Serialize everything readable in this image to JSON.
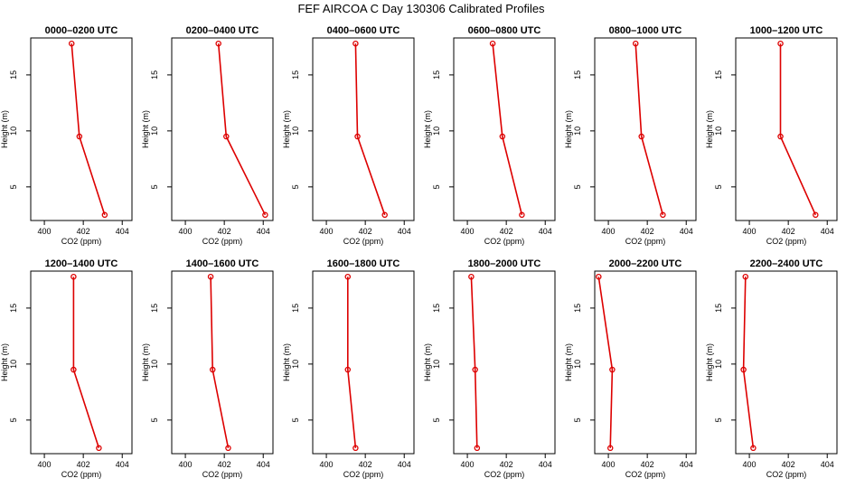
{
  "title": "FEF AIRCOA C  Day 130306  Calibrated Profiles",
  "colors": {
    "series": "#dd0000",
    "axis": "#000000",
    "background": "#ffffff"
  },
  "chart_data": [
    {
      "type": "line",
      "title": "0000–0200 UTC",
      "xlabel": "CO2 (ppm)",
      "ylabel": "Height (m)",
      "xlim": [
        399.3,
        404.5
      ],
      "ylim": [
        2,
        18.3
      ],
      "xticks": [
        400,
        402,
        404
      ],
      "yticks": [
        5,
        10,
        15
      ],
      "grid": false,
      "series": [
        {
          "x": [
            403.1,
            401.8,
            401.4
          ],
          "y": [
            2.5,
            9.5,
            17.8
          ]
        }
      ]
    },
    {
      "type": "line",
      "title": "0200–0400 UTC",
      "xlabel": "CO2 (ppm)",
      "ylabel": "Height (m)",
      "xlim": [
        399.3,
        404.5
      ],
      "ylim": [
        2,
        18.3
      ],
      "xticks": [
        400,
        402,
        404
      ],
      "yticks": [
        5,
        10,
        15
      ],
      "grid": false,
      "series": [
        {
          "x": [
            404.1,
            402.1,
            401.7
          ],
          "y": [
            2.5,
            9.5,
            17.8
          ]
        }
      ]
    },
    {
      "type": "line",
      "title": "0400–0600 UTC",
      "xlabel": "CO2 (ppm)",
      "ylabel": "Height (m)",
      "xlim": [
        399.3,
        404.5
      ],
      "ylim": [
        2,
        18.3
      ],
      "xticks": [
        400,
        402,
        404
      ],
      "yticks": [
        5,
        10,
        15
      ],
      "grid": false,
      "series": [
        {
          "x": [
            403.0,
            401.6,
            401.5
          ],
          "y": [
            2.5,
            9.5,
            17.8
          ]
        }
      ]
    },
    {
      "type": "line",
      "title": "0600–0800 UTC",
      "xlabel": "CO2 (ppm)",
      "ylabel": "Height (m)",
      "xlim": [
        399.3,
        404.5
      ],
      "ylim": [
        2,
        18.3
      ],
      "xticks": [
        400,
        402,
        404
      ],
      "yticks": [
        5,
        10,
        15
      ],
      "grid": false,
      "series": [
        {
          "x": [
            402.8,
            401.8,
            401.3
          ],
          "y": [
            2.5,
            9.5,
            17.8
          ]
        }
      ]
    },
    {
      "type": "line",
      "title": "0800–1000 UTC",
      "xlabel": "CO2 (ppm)",
      "ylabel": "Height (m)",
      "xlim": [
        399.3,
        404.5
      ],
      "ylim": [
        2,
        18.3
      ],
      "xticks": [
        400,
        402,
        404
      ],
      "yticks": [
        5,
        10,
        15
      ],
      "grid": false,
      "series": [
        {
          "x": [
            402.8,
            401.7,
            401.4
          ],
          "y": [
            2.5,
            9.5,
            17.8
          ]
        }
      ]
    },
    {
      "type": "line",
      "title": "1000–1200 UTC",
      "xlabel": "CO2 (ppm)",
      "ylabel": "Height (m)",
      "xlim": [
        399.3,
        404.5
      ],
      "ylim": [
        2,
        18.3
      ],
      "xticks": [
        400,
        402,
        404
      ],
      "yticks": [
        5,
        10,
        15
      ],
      "grid": false,
      "series": [
        {
          "x": [
            403.4,
            401.6,
            401.6
          ],
          "y": [
            2.5,
            9.5,
            17.8
          ]
        }
      ]
    },
    {
      "type": "line",
      "title": "1200–1400 UTC",
      "xlabel": "CO2 (ppm)",
      "ylabel": "Height (m)",
      "xlim": [
        399.3,
        404.5
      ],
      "ylim": [
        2,
        18.3
      ],
      "xticks": [
        400,
        402,
        404
      ],
      "yticks": [
        5,
        10,
        15
      ],
      "grid": false,
      "series": [
        {
          "x": [
            402.8,
            401.5,
            401.5
          ],
          "y": [
            2.5,
            9.5,
            17.8
          ]
        }
      ]
    },
    {
      "type": "line",
      "title": "1400–1600 UTC",
      "xlabel": "CO2 (ppm)",
      "ylabel": "Height (m)",
      "xlim": [
        399.3,
        404.5
      ],
      "ylim": [
        2,
        18.3
      ],
      "xticks": [
        400,
        402,
        404
      ],
      "yticks": [
        5,
        10,
        15
      ],
      "grid": false,
      "series": [
        {
          "x": [
            402.2,
            401.4,
            401.3
          ],
          "y": [
            2.5,
            9.5,
            17.8
          ]
        }
      ]
    },
    {
      "type": "line",
      "title": "1600–1800 UTC",
      "xlabel": "CO2 (ppm)",
      "ylabel": "Height (m)",
      "xlim": [
        399.3,
        404.5
      ],
      "ylim": [
        2,
        18.3
      ],
      "xticks": [
        400,
        402,
        404
      ],
      "yticks": [
        5,
        10,
        15
      ],
      "grid": false,
      "series": [
        {
          "x": [
            401.5,
            401.1,
            401.1
          ],
          "y": [
            2.5,
            9.5,
            17.8
          ]
        }
      ]
    },
    {
      "type": "line",
      "title": "1800–2000 UTC",
      "xlabel": "CO2 (ppm)",
      "ylabel": "Height (m)",
      "xlim": [
        399.3,
        404.5
      ],
      "ylim": [
        2,
        18.3
      ],
      "xticks": [
        400,
        402,
        404
      ],
      "yticks": [
        5,
        10,
        15
      ],
      "grid": false,
      "series": [
        {
          "x": [
            400.5,
            400.4,
            400.2
          ],
          "y": [
            2.5,
            9.5,
            17.8
          ]
        }
      ]
    },
    {
      "type": "line",
      "title": "2000–2200 UTC",
      "xlabel": "CO2 (ppm)",
      "ylabel": "Height (m)",
      "xlim": [
        399.3,
        404.5
      ],
      "ylim": [
        2,
        18.3
      ],
      "xticks": [
        400,
        402,
        404
      ],
      "yticks": [
        5,
        10,
        15
      ],
      "grid": false,
      "series": [
        {
          "x": [
            400.1,
            400.2,
            399.5
          ],
          "y": [
            2.5,
            9.5,
            17.8
          ]
        }
      ]
    },
    {
      "type": "line",
      "title": "2200–2400 UTC",
      "xlabel": "CO2 (ppm)",
      "ylabel": "Height (m)",
      "xlim": [
        399.3,
        404.5
      ],
      "ylim": [
        2,
        18.3
      ],
      "xticks": [
        400,
        402,
        404
      ],
      "yticks": [
        5,
        10,
        15
      ],
      "grid": false,
      "series": [
        {
          "x": [
            400.2,
            399.7,
            399.8
          ],
          "y": [
            2.5,
            9.5,
            17.8
          ]
        }
      ]
    }
  ]
}
